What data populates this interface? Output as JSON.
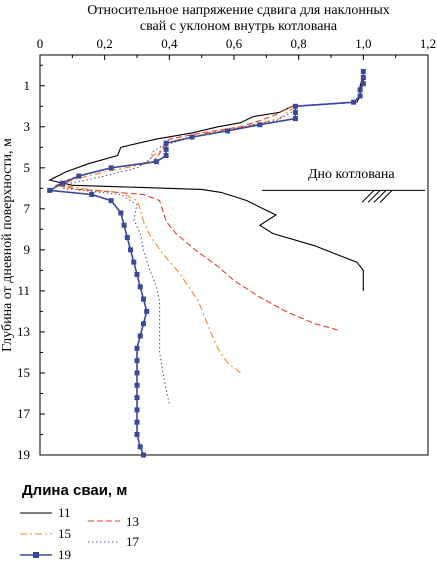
{
  "chart_data": {
    "type": "line",
    "title_lines": [
      "Относительное напряжение сдвига для наклонных",
      "свай с уклоном внутрь котлована"
    ],
    "xlabel": "",
    "ylabel": "Глубина от дневной поверхности, м",
    "xlim": [
      0,
      1.2
    ],
    "ylim": [
      0,
      19
    ],
    "y_inverted": true,
    "x_axis_position": "top",
    "x_ticks": [
      0,
      0.2,
      0.4,
      0.6,
      0.8,
      1.0,
      1.2
    ],
    "x_tick_labels": [
      "0",
      "0,2",
      "0,4",
      "0,6",
      "0,8",
      "1,0",
      "1,2"
    ],
    "y_ticks": [
      1,
      3,
      5,
      7,
      9,
      11,
      13,
      15,
      17,
      19
    ],
    "y_tick_labels": [
      "1",
      "3",
      "5",
      "7",
      "9",
      "11",
      "13",
      "15",
      "17",
      "19"
    ],
    "grid": false,
    "legend_title": "Длина сваи, м",
    "legend_placement": "bottom-left",
    "annotation": "Дно котлована",
    "excavation_bottom_depth": 6.1,
    "series": [
      {
        "name": "11",
        "color": "#000000",
        "style": "solid",
        "points": [
          [
            1.0,
            0.5
          ],
          [
            0.99,
            1.0
          ],
          [
            0.99,
            1.5
          ],
          [
            0.98,
            1.8
          ],
          [
            0.78,
            2.0
          ],
          [
            0.74,
            2.3
          ],
          [
            0.66,
            2.5
          ],
          [
            0.62,
            2.8
          ],
          [
            0.55,
            3.0
          ],
          [
            0.47,
            3.3
          ],
          [
            0.36,
            3.6
          ],
          [
            0.25,
            4.0
          ],
          [
            0.24,
            4.4
          ],
          [
            0.15,
            4.8
          ],
          [
            0.08,
            5.2
          ],
          [
            0.03,
            5.6
          ],
          [
            0.1,
            5.85
          ],
          [
            0.3,
            5.95
          ],
          [
            0.5,
            6.05
          ],
          [
            0.56,
            6.2
          ],
          [
            0.64,
            6.6
          ],
          [
            0.69,
            7.0
          ],
          [
            0.73,
            7.3
          ],
          [
            0.68,
            7.8
          ],
          [
            0.72,
            8.2
          ],
          [
            0.85,
            8.8
          ],
          [
            0.93,
            9.3
          ],
          [
            0.98,
            9.6
          ],
          [
            1.0,
            10.0
          ],
          [
            1.0,
            10.5
          ],
          [
            1.0,
            11.0
          ]
        ]
      },
      {
        "name": "13",
        "color": "#e0402a",
        "style": "dashed",
        "points": [
          [
            0.98,
            1.8
          ],
          [
            0.78,
            2.0
          ],
          [
            0.73,
            2.4
          ],
          [
            0.68,
            2.7
          ],
          [
            0.62,
            3.0
          ],
          [
            0.5,
            3.3
          ],
          [
            0.4,
            3.6
          ],
          [
            0.38,
            4.0
          ],
          [
            0.37,
            4.3
          ],
          [
            0.35,
            4.7
          ],
          [
            0.22,
            5.0
          ],
          [
            0.1,
            5.5
          ],
          [
            0.05,
            5.85
          ],
          [
            0.12,
            6.05
          ],
          [
            0.32,
            6.3
          ],
          [
            0.37,
            6.6
          ],
          [
            0.38,
            7.1
          ],
          [
            0.39,
            7.6
          ],
          [
            0.42,
            8.2
          ],
          [
            0.48,
            9.0
          ],
          [
            0.55,
            9.8
          ],
          [
            0.6,
            10.5
          ],
          [
            0.68,
            11.3
          ],
          [
            0.76,
            12.0
          ],
          [
            0.85,
            12.6
          ],
          [
            0.92,
            12.9
          ]
        ]
      },
      {
        "name": "15",
        "color": "#f08c2a",
        "style": "dashdot",
        "points": [
          [
            0.79,
            2.0
          ],
          [
            0.74,
            2.6
          ],
          [
            0.63,
            3.0
          ],
          [
            0.52,
            3.3
          ],
          [
            0.41,
            3.7
          ],
          [
            0.38,
            4.1
          ],
          [
            0.35,
            4.4
          ],
          [
            0.33,
            4.8
          ],
          [
            0.2,
            5.2
          ],
          [
            0.1,
            5.6
          ],
          [
            0.07,
            5.85
          ],
          [
            0.15,
            6.05
          ],
          [
            0.25,
            6.2
          ],
          [
            0.3,
            6.6
          ],
          [
            0.31,
            7.0
          ],
          [
            0.32,
            7.6
          ],
          [
            0.34,
            8.3
          ],
          [
            0.38,
            9.2
          ],
          [
            0.43,
            10.1
          ],
          [
            0.46,
            10.8
          ],
          [
            0.49,
            11.5
          ],
          [
            0.51,
            12.3
          ],
          [
            0.53,
            13.1
          ],
          [
            0.55,
            13.8
          ],
          [
            0.58,
            14.5
          ],
          [
            0.62,
            15.0
          ]
        ]
      },
      {
        "name": "17",
        "color": "#5a5a8a",
        "style": "dotted",
        "points": [
          [
            0.79,
            2.2
          ],
          [
            0.73,
            2.7
          ],
          [
            0.63,
            3.0
          ],
          [
            0.5,
            3.4
          ],
          [
            0.38,
            3.9
          ],
          [
            0.35,
            4.2
          ],
          [
            0.34,
            4.6
          ],
          [
            0.3,
            5.0
          ],
          [
            0.2,
            5.4
          ],
          [
            0.08,
            5.8
          ],
          [
            0.07,
            6.0
          ],
          [
            0.25,
            6.3
          ],
          [
            0.3,
            6.8
          ],
          [
            0.29,
            7.5
          ],
          [
            0.31,
            8.2
          ],
          [
            0.32,
            9.0
          ],
          [
            0.34,
            10.0
          ],
          [
            0.36,
            10.8
          ],
          [
            0.37,
            11.5
          ],
          [
            0.37,
            12.3
          ],
          [
            0.37,
            13.2
          ],
          [
            0.37,
            14.0
          ],
          [
            0.38,
            15.0
          ],
          [
            0.39,
            15.8
          ],
          [
            0.4,
            16.5
          ]
        ]
      },
      {
        "name": "19",
        "color": "#3a4a9a",
        "style": "solid-square-markers",
        "points": [
          [
            1.0,
            0.3
          ],
          [
            1.0,
            0.6
          ],
          [
            1.0,
            0.9
          ],
          [
            0.99,
            1.2
          ],
          [
            0.99,
            1.5
          ],
          [
            0.97,
            1.8
          ],
          [
            0.79,
            2.0
          ],
          [
            0.79,
            2.3
          ],
          [
            0.79,
            2.6
          ],
          [
            0.68,
            2.9
          ],
          [
            0.58,
            3.2
          ],
          [
            0.47,
            3.5
          ],
          [
            0.39,
            3.8
          ],
          [
            0.39,
            4.1
          ],
          [
            0.39,
            4.4
          ],
          [
            0.36,
            4.7
          ],
          [
            0.22,
            5.0
          ],
          [
            0.12,
            5.4
          ],
          [
            0.07,
            5.75
          ],
          [
            0.03,
            6.1
          ],
          [
            0.16,
            6.3
          ],
          [
            0.22,
            6.6
          ],
          [
            0.25,
            7.2
          ],
          [
            0.26,
            7.8
          ],
          [
            0.27,
            8.4
          ],
          [
            0.28,
            9.0
          ],
          [
            0.29,
            9.6
          ],
          [
            0.3,
            10.2
          ],
          [
            0.31,
            10.8
          ],
          [
            0.32,
            11.4
          ],
          [
            0.33,
            12.0
          ],
          [
            0.32,
            12.6
          ],
          [
            0.31,
            13.2
          ],
          [
            0.3,
            13.8
          ],
          [
            0.3,
            14.4
          ],
          [
            0.3,
            15.0
          ],
          [
            0.3,
            15.6
          ],
          [
            0.3,
            16.2
          ],
          [
            0.3,
            16.8
          ],
          [
            0.3,
            17.4
          ],
          [
            0.3,
            18.0
          ],
          [
            0.31,
            18.6
          ],
          [
            0.32,
            19.0
          ]
        ]
      }
    ]
  }
}
